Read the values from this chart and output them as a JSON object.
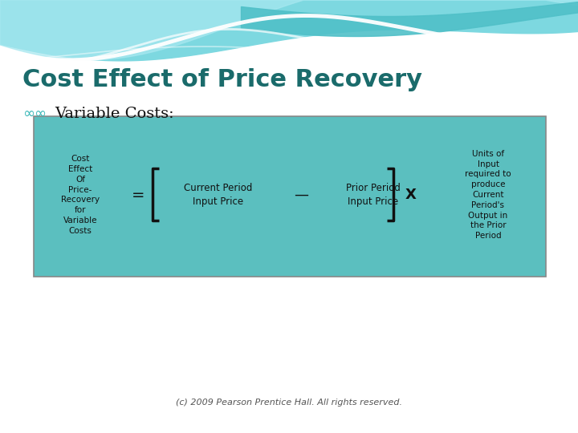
{
  "title": "Cost Effect of Price Recovery",
  "title_color": "#1a6b6b",
  "subtitle_symbol": "∞",
  "subtitle_text": "Variable Costs:",
  "subtitle_symbol_color": "#3ab8b8",
  "subtitle_text_color": "#111111",
  "bg_color": "#ffffff",
  "box_bg_color": "#5bbfbf",
  "box_border_color": "#4aafaa",
  "bracket_color": "#111111",
  "text_color": "#111111",
  "footer": "(c) 2009 Pearson Prentice Hall. All rights reserved.",
  "footer_color": "#555555",
  "left_label": "Cost\nEffect\nOf\nPrice-\nRecovery\nfor\nVariable\nCosts",
  "equals_sign": "=",
  "term1": "Current Period\nInput Price",
  "minus_sign": "—",
  "term2": "Prior Period\nInput Price",
  "times_sign": "X",
  "right_label": "Units of\nInput\nrequired to\nproduce\nCurrent\nPeriod's\nOutput in\nthe Prior\nPeriod",
  "wave_color1": "#7dd8e0",
  "wave_color2": "#a8e8f0",
  "wave_color3": "#50c0c8"
}
